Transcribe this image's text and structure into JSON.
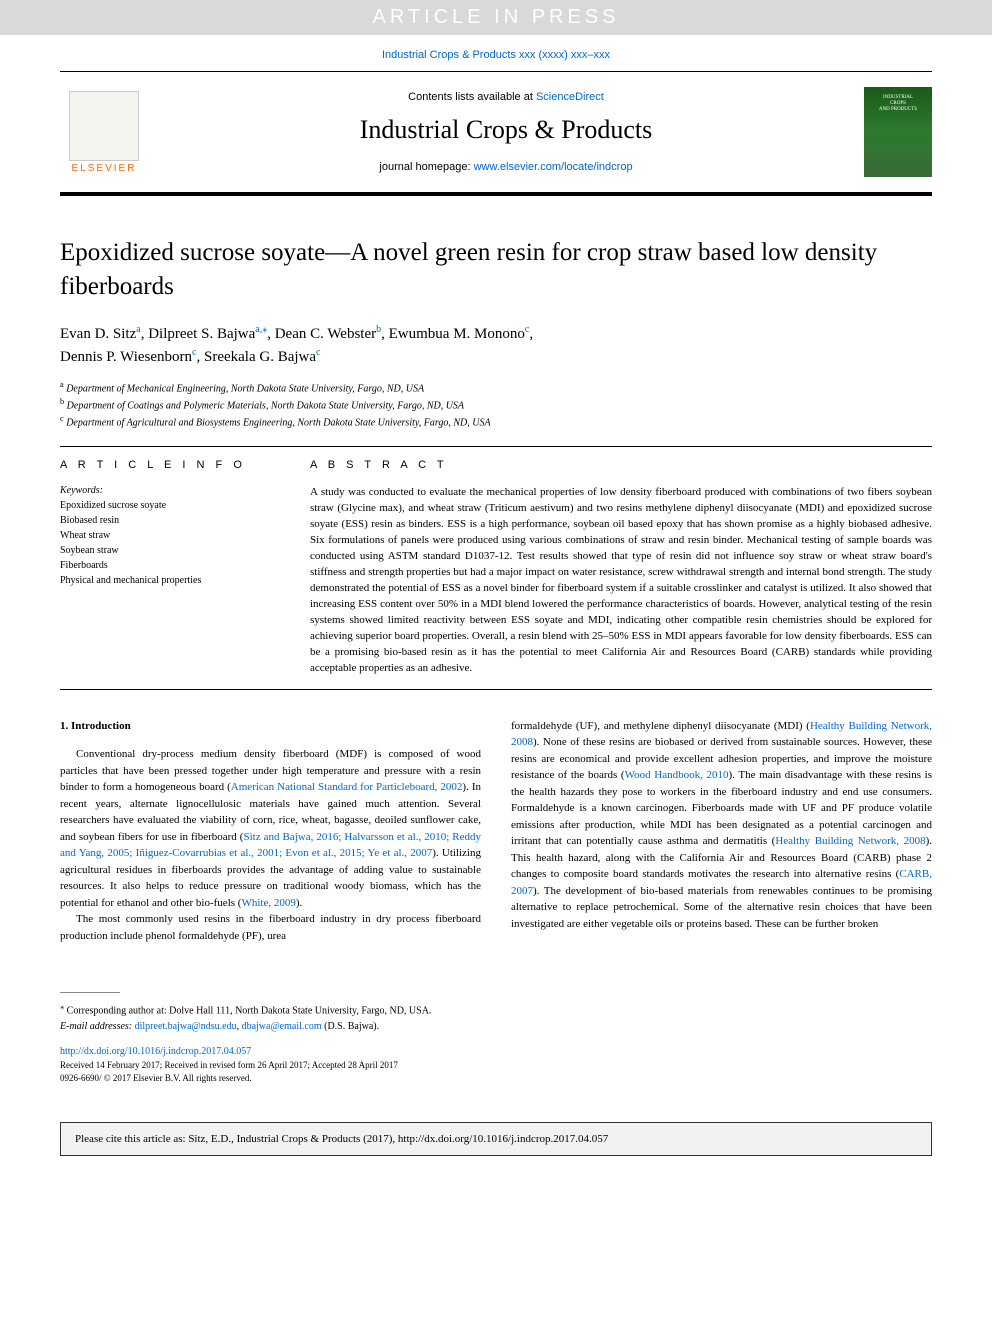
{
  "banner": {
    "text": "ARTICLE IN PRESS"
  },
  "topCitation": "Industrial Crops & Products xxx (xxxx) xxx–xxx",
  "header": {
    "contentsPrefix": "Contents lists available at ",
    "contentsLink": "ScienceDirect",
    "journalName": "Industrial Crops & Products",
    "homepagePrefix": "journal homepage: ",
    "homepageLink": "www.elsevier.com/locate/indcrop",
    "elsevierLabel": "ELSEVIER",
    "coverLine1": "INDUSTRIAL",
    "coverLine2": "CROPS",
    "coverLine3": "AND PRODUCTS"
  },
  "article": {
    "title": "Epoxidized sucrose soyate—A novel green resin for crop straw based low density fiberboards",
    "authors": [
      {
        "name": "Evan D. Sitz",
        "aff": "a"
      },
      {
        "name": "Dilpreet S. Bajwa",
        "aff": "a,",
        "corr": "⁎"
      },
      {
        "name": "Dean C. Webster",
        "aff": "b"
      },
      {
        "name": "Ewumbua M. Monono",
        "aff": "c"
      },
      {
        "name": "Dennis P. Wiesenborn",
        "aff": "c"
      },
      {
        "name": "Sreekala G. Bajwa",
        "aff": "c"
      }
    ],
    "affiliations": [
      {
        "mark": "a",
        "text": "Department of Mechanical Engineering, North Dakota State University, Fargo, ND, USA"
      },
      {
        "mark": "b",
        "text": "Department of Coatings and Polymeric Materials, North Dakota State University, Fargo, ND, USA"
      },
      {
        "mark": "c",
        "text": "Department of Agricultural and Biosystems Engineering, North Dakota State University, Fargo, ND, USA"
      }
    ]
  },
  "info": {
    "heading": "A R T I C L E  I N F O",
    "keywordsLabel": "Keywords:",
    "keywords": [
      "Epoxidized sucrose soyate",
      "Biobased resin",
      "Wheat straw",
      "Soybean straw",
      "Fiberboards",
      "Physical and mechanical properties"
    ]
  },
  "abstract": {
    "heading": "A B S T R A C T",
    "text": "A study was conducted to evaluate the mechanical properties of low density fiberboard produced with combinations of two fibers soybean straw (Glycine max), and wheat straw (Triticum aestivum) and two resins methylene diphenyl diisocyanate (MDI) and epoxidized sucrose soyate (ESS) resin as binders. ESS is a high performance, soybean oil based epoxy that has shown promise as a highly biobased adhesive. Six formulations of panels were produced using various combinations of straw and resin binder. Mechanical testing of sample boards was conducted using ASTM standard D1037-12. Test results showed that type of resin did not influence soy straw or wheat straw board's stiffness and strength properties but had a major impact on water resistance, screw withdrawal strength and internal bond strength. The study demonstrated the potential of ESS as a novel binder for fiberboard system if a suitable crosslinker and catalyst is utilized. It also showed that increasing ESS content over 50% in a MDI blend lowered the performance characteristics of boards. However, analytical testing of the resin systems showed limited reactivity between ESS soyate and MDI, indicating other compatible resin chemistries should be explored for achieving superior board properties. Overall, a resin blend with 25–50% ESS in MDI appears favorable for low density fiberboards. ESS can be a promising bio-based resin as it has the potential to meet California Air and Resources Board (CARB) standards while providing acceptable properties as an adhesive."
  },
  "intro": {
    "heading": "1. Introduction",
    "col1": {
      "p1a": "Conventional dry-process medium density fiberboard (MDF) is composed of wood particles that have been pressed together under high temperature and pressure with a resin binder to form a homogeneous board (",
      "p1link1": "American National Standard for Particleboard, 2002",
      "p1b": "). In recent years, alternate lignocellulosic materials have gained much attention. Several researchers have evaluated the viability of corn, rice, wheat, bagasse, deoiled sunflower cake, and soybean fibers for use in fiberboard (",
      "p1link2": "Sitz and Bajwa, 2016; Halvarsson et al., 2010; Reddy and Yang, 2005; Iñiguez-Covarrubias et al., 2001; Evon et al., 2015; Ye et al., 2007",
      "p1c": "). Utilizing agricultural residues in fiberboards provides the advantage of adding value to sustainable resources. It also helps to reduce pressure on traditional woody biomass, which has the potential for ethanol and other bio-fuels (",
      "p1link3": "White, 2009",
      "p1d": ").",
      "p2": "The most commonly used resins in the fiberboard industry in dry process fiberboard production include phenol formaldehyde (PF), urea"
    },
    "col2": {
      "p1a": "formaldehyde (UF), and methylene diphenyl diisocyanate (MDI) (",
      "p1link1": "Healthy Building Network, 2008",
      "p1b": "). None of these resins are biobased or derived from sustainable sources. However, these resins are economical and provide excellent adhesion properties, and improve the moisture resistance of the boards (",
      "p1link2": "Wood Handbook, 2010",
      "p1c": "). The main disadvantage with these resins is the health hazards they pose to workers in the fiberboard industry and end use consumers. Formaldehyde is a known carcinogen. Fiberboards made with UF and PF produce volatile emissions after production, while MDI has been designated as a potential carcinogen and irritant that can potentially cause asthma and dermatitis (",
      "p1link3": "Healthy Building Network, 2008",
      "p1d": "). This health hazard, along with the California Air and Resources Board (CARB) phase 2 changes to composite board standards motivates the research into alternative resins (",
      "p1link4": "CARB, 2007",
      "p1e": "). The development of bio-based materials from renewables continues to be promising alternative to replace petrochemical. Some of the alternative resin choices that have been investigated are either vegetable oils or proteins based. These can be further broken"
    }
  },
  "footer": {
    "corrMark": "⁎",
    "corrText": " Corresponding author at: Dolve Hall 111, North Dakota State University, Fargo, ND, USA.",
    "emailLabel": "E-mail addresses: ",
    "email1": "dilpreet.bajwa@ndsu.edu",
    "emailSep": ", ",
    "email2": "dbajwa@email.com",
    "emailSuffix": " (D.S. Bajwa).",
    "doi": "http://dx.doi.org/10.1016/j.indcrop.2017.04.057",
    "received": "Received 14 February 2017; Received in revised form 26 April 2017; Accepted 28 April 2017",
    "copyright": "0926-6690/ © 2017 Elsevier B.V. All rights reserved."
  },
  "citeBox": "Please cite this article as: Sitz, E.D., Industrial Crops & Products (2017), http://dx.doi.org/10.1016/j.indcrop.2017.04.057",
  "colors": {
    "link": "#0066cc",
    "elsevierOrange": "#ff6600",
    "bannerBg": "#d9d9d9",
    "coverGreen": "#2d7a2d"
  }
}
